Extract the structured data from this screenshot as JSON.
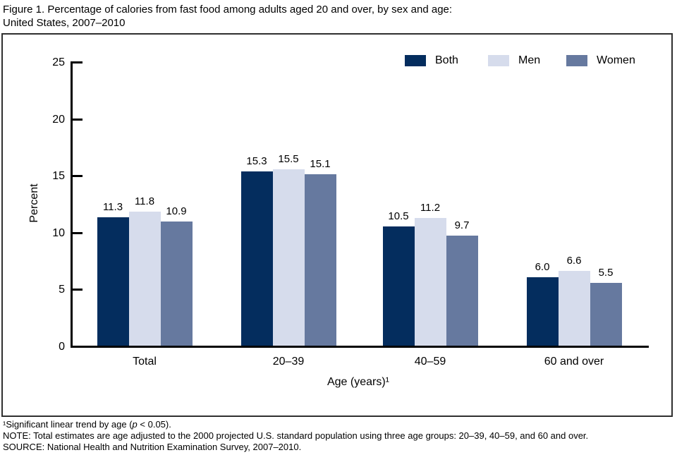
{
  "title": {
    "line1": "Figure 1. Percentage of calories from fast food among adults aged 20 and over, by sex and age:",
    "line2": "United States, 2007–2010"
  },
  "chart_data": {
    "type": "bar",
    "title": "Percentage of calories from fast food among adults aged 20 and over, by sex and age: United States, 2007–2010",
    "categories": [
      "Total",
      "20–39",
      "40–59",
      "60 and over"
    ],
    "series": [
      {
        "name": "Both",
        "color": "#042d5e",
        "values": [
          11.3,
          15.3,
          10.5,
          6.0
        ]
      },
      {
        "name": "Men",
        "color": "#d6dcec",
        "values": [
          11.8,
          15.5,
          11.2,
          6.6
        ]
      },
      {
        "name": "Women",
        "color": "#66799f",
        "values": [
          10.9,
          15.1,
          9.7,
          5.5
        ]
      }
    ],
    "xlabel": "Age (years)¹",
    "ylabel": "Percent",
    "ylim": [
      0,
      25
    ],
    "yticks": [
      0,
      5,
      10,
      15,
      20,
      25
    ],
    "grid": false,
    "legend_position": "top-right",
    "value_labels_shown": true
  },
  "footnotes": {
    "fn1_pre": "¹Significant linear trend by age (",
    "fn1_italic": "p",
    "fn1_post": " < 0.05).",
    "note": "NOTE: Total estimates are age adjusted to the 2000 projected U.S. standard population using three age groups: 20–39, 40–59, and 60 and over.",
    "source": "SOURCE: National Health and Nutrition Examination Survey, 2007–2010."
  }
}
